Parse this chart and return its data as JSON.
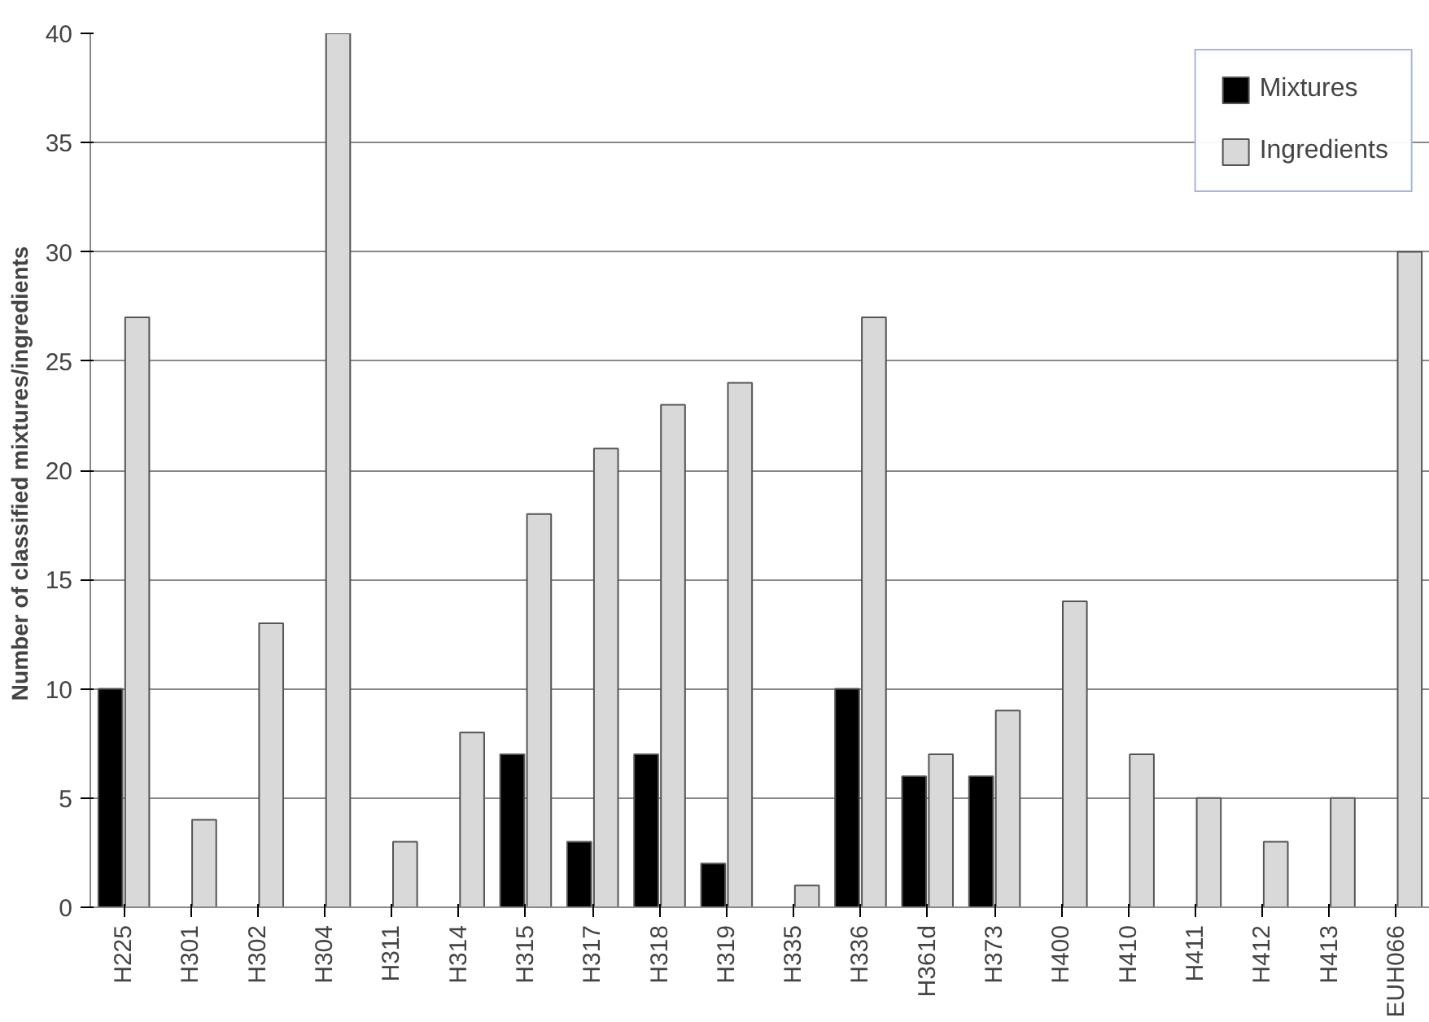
{
  "chart_data": {
    "type": "bar",
    "ylabel": "Number of classified  mixtures/ingredients",
    "categories": [
      "H225",
      "H301",
      "H302",
      "H304",
      "H311",
      "H314",
      "H315",
      "H317",
      "H318",
      "H319",
      "H335",
      "H336",
      "H361d",
      "H373",
      "H400",
      "H410",
      "H411",
      "H412",
      "H413",
      "EUH066"
    ],
    "series": [
      {
        "name": "Mixtures",
        "color": "#000000",
        "values": [
          10,
          null,
          null,
          null,
          null,
          null,
          7,
          3,
          7,
          2,
          null,
          10,
          6,
          6,
          null,
          null,
          null,
          null,
          null,
          null
        ]
      },
      {
        "name": "Ingredients",
        "color": "#d9d9d9",
        "values": [
          27,
          4,
          13,
          40,
          3,
          8,
          18,
          21,
          23,
          24,
          1,
          27,
          7,
          9,
          14,
          7,
          5,
          3,
          5,
          30
        ]
      }
    ],
    "ylim": [
      0,
      40
    ],
    "yticks": [
      0,
      5,
      10,
      15,
      20,
      25,
      30,
      35,
      40
    ],
    "grid": "y",
    "legend": "top right"
  }
}
